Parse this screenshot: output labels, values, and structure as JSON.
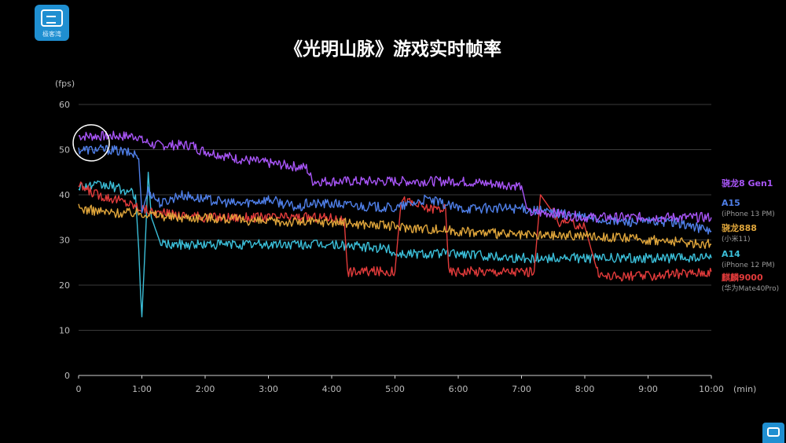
{
  "logo": {
    "text": "极客湾"
  },
  "chart_data": {
    "type": "line",
    "title": "《光明山脉》游戏实时帧率",
    "ylabel": "(fps)",
    "xlabel": "(min)",
    "ylim": [
      0,
      60
    ],
    "xlim": [
      0,
      10
    ],
    "yticks": [
      0,
      10,
      20,
      30,
      40,
      50,
      60
    ],
    "xticks": [
      "0",
      "1:00",
      "2:00",
      "3:00",
      "4:00",
      "5:00",
      "6:00",
      "7:00",
      "8:00",
      "9:00",
      "10:00"
    ],
    "grid": "horizontal",
    "legend_position": "right",
    "series": [
      {
        "name": "骁龙8 Gen1",
        "subtitle": "",
        "color": "#a855f7",
        "x": [
          0,
          0.5,
          0.95,
          1.0,
          1.2,
          1.8,
          1.9,
          2.5,
          3.0,
          3.6,
          3.7,
          4.0,
          5.0,
          6.0,
          7.0,
          7.1,
          7.5,
          8.0,
          9.0,
          9.4,
          10.0
        ],
        "y": [
          53,
          53,
          53,
          52,
          51,
          51,
          50,
          48,
          47,
          46,
          43,
          43,
          43,
          43,
          42,
          36,
          36,
          35,
          35,
          35,
          35
        ]
      },
      {
        "name": "A15",
        "subtitle": "(iPhone 13 PM)",
        "color": "#4f7fe8",
        "x": [
          0,
          0.5,
          0.9,
          0.95,
          1.0,
          1.1,
          1.3,
          1.6,
          2.0,
          2.5,
          3.0,
          3.5,
          3.6,
          4.0,
          5.0,
          5.5,
          6.0,
          7.0,
          7.5,
          8.0,
          8.5,
          9.0,
          9.4,
          9.7,
          10.0
        ],
        "y": [
          50,
          50,
          49,
          48,
          36,
          41,
          38,
          40,
          39,
          38,
          39,
          37,
          38,
          38,
          37,
          39,
          37,
          37,
          36,
          35,
          34,
          34,
          34,
          33,
          32
        ]
      },
      {
        "name": "骁龙888",
        "subtitle": "(小米11)",
        "color": "#e0a63b",
        "x": [
          0,
          0.5,
          1.0,
          1.5,
          2.0,
          3.0,
          4.0,
          5.0,
          6.0,
          7.0,
          8.0,
          9.0,
          10.0
        ],
        "y": [
          37,
          36,
          36,
          35,
          35,
          34,
          34,
          33,
          32,
          31,
          31,
          30,
          29
        ]
      },
      {
        "name": "A14",
        "subtitle": "(iPhone 12 PM)",
        "color": "#3bbfd9",
        "x": [
          0,
          0.5,
          0.9,
          0.95,
          0.98,
          1.0,
          1.05,
          1.1,
          1.15,
          1.3,
          2.0,
          3.0,
          4.0,
          4.9,
          5.0,
          6.0,
          7.0,
          8.0,
          9.0,
          9.5,
          10.0
        ],
        "y": [
          42,
          42,
          40,
          28,
          18,
          13,
          28,
          45,
          35,
          29,
          29,
          29,
          29,
          28,
          27,
          27,
          26,
          26,
          26,
          26,
          26
        ]
      },
      {
        "name": "麒麟9000",
        "subtitle": "(华为Mate40Pro)",
        "color": "#e23b3b",
        "x": [
          0,
          0.3,
          0.6,
          1.0,
          1.2,
          2.0,
          3.0,
          4.0,
          4.2,
          4.25,
          5.0,
          5.1,
          5.5,
          5.8,
          5.85,
          6.5,
          7.2,
          7.3,
          7.5,
          7.6,
          8.0,
          8.2,
          8.3,
          9.0,
          10.0
        ],
        "y": [
          42,
          40,
          39,
          37,
          36,
          35,
          35,
          35,
          34,
          23,
          23,
          39,
          37,
          37,
          23,
          23,
          23,
          40,
          36,
          34,
          33,
          23,
          22,
          22,
          23
        ]
      }
    ],
    "annotations": [
      {
        "type": "circle",
        "x": 0.1,
        "y": 51.5,
        "color": "#ffffff"
      }
    ]
  }
}
